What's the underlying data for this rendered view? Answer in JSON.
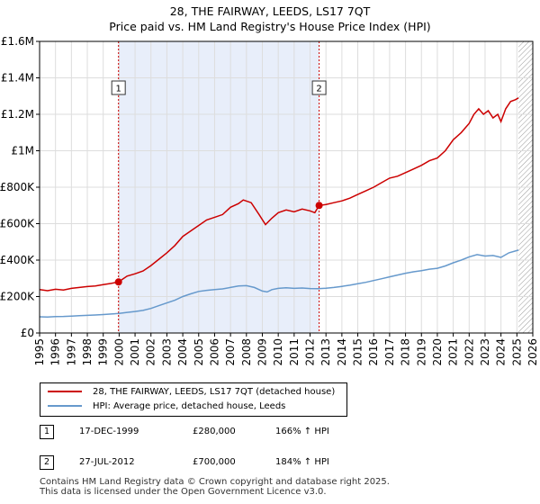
{
  "title_line1": "28, THE FAIRWAY, LEEDS, LS17 7QT",
  "title_line2": "Price paid vs. HM Land Registry's House Price Index (HPI)",
  "colors": {
    "property": "#cc0000",
    "hpi": "#6699cc",
    "sale_band": "#e8eefa",
    "future_hatch": "#999999"
  },
  "chart_data": {
    "type": "line",
    "title": "28, THE FAIRWAY, LEEDS, LS17 7QT — Price paid vs. HM Land Registry's House Price Index (HPI)",
    "xlabel": "",
    "ylabel": "",
    "xlim": [
      1995,
      2026
    ],
    "ylim": [
      0,
      1600000
    ],
    "x_ticks": [
      "1995",
      "1996",
      "1997",
      "1998",
      "1999",
      "2000",
      "2001",
      "2002",
      "2003",
      "2004",
      "2005",
      "2006",
      "2007",
      "2008",
      "2009",
      "2010",
      "2011",
      "2012",
      "2013",
      "2014",
      "2015",
      "2016",
      "2017",
      "2018",
      "2019",
      "2020",
      "2021",
      "2022",
      "2023",
      "2024",
      "2025",
      "2026"
    ],
    "y_ticks": [
      {
        "value": 0,
        "label": "£0"
      },
      {
        "value": 200000,
        "label": "£200K"
      },
      {
        "value": 400000,
        "label": "£400K"
      },
      {
        "value": 600000,
        "label": "£600K"
      },
      {
        "value": 800000,
        "label": "£800K"
      },
      {
        "value": 1000000,
        "label": "£1M"
      },
      {
        "value": 1200000,
        "label": "£1.2M"
      },
      {
        "value": 1400000,
        "label": "£1.4M"
      },
      {
        "value": 1600000,
        "label": "£1.6M"
      }
    ],
    "grid": true,
    "shaded_period": [
      1999.96,
      2012.57
    ],
    "future_from": 2025.1,
    "series": [
      {
        "name": "28, THE FAIRWAY, LEEDS, LS17 7QT (detached house)",
        "x": [
          1995,
          1995.5,
          1996,
          1996.5,
          1997,
          1997.5,
          1998,
          1998.5,
          1999,
          1999.5,
          1999.96,
          2000.5,
          2001,
          2001.5,
          2002,
          2002.5,
          2003,
          2003.5,
          2004,
          2004.5,
          2005,
          2005.5,
          2006,
          2006.5,
          2007,
          2007.5,
          2007.8,
          2008.3,
          2008.8,
          2009.2,
          2009.6,
          2010,
          2010.5,
          2011,
          2011.5,
          2012,
          2012.3,
          2012.57,
          2013,
          2013.5,
          2014,
          2014.5,
          2015,
          2015.5,
          2016,
          2016.5,
          2017,
          2017.5,
          2018,
          2018.5,
          2019,
          2019.5,
          2020,
          2020.5,
          2021,
          2021.5,
          2022,
          2022.3,
          2022.6,
          2022.9,
          2023.2,
          2023.5,
          2023.8,
          2024,
          2024.3,
          2024.6,
          2024.9,
          2025.1
        ],
        "values": [
          238000,
          232000,
          240000,
          236000,
          245000,
          250000,
          255000,
          258000,
          265000,
          272000,
          280000,
          312000,
          325000,
          340000,
          370000,
          405000,
          440000,
          480000,
          530000,
          560000,
          590000,
          620000,
          635000,
          650000,
          690000,
          710000,
          730000,
          715000,
          650000,
          595000,
          630000,
          660000,
          675000,
          665000,
          680000,
          670000,
          660000,
          700000,
          705000,
          715000,
          725000,
          740000,
          760000,
          780000,
          800000,
          825000,
          850000,
          860000,
          880000,
          900000,
          920000,
          945000,
          960000,
          1000000,
          1060000,
          1100000,
          1150000,
          1200000,
          1230000,
          1200000,
          1220000,
          1180000,
          1200000,
          1160000,
          1230000,
          1270000,
          1280000,
          1290000
        ]
      },
      {
        "name": "HPI: Average price, detached house, Leeds",
        "x": [
          1995,
          1995.5,
          1996,
          1996.5,
          1997,
          1997.5,
          1998,
          1998.5,
          1999,
          1999.5,
          2000,
          2000.5,
          2001,
          2001.5,
          2002,
          2002.5,
          2003,
          2003.5,
          2004,
          2004.5,
          2005,
          2005.5,
          2006,
          2006.5,
          2007,
          2007.5,
          2008,
          2008.5,
          2009,
          2009.3,
          2009.6,
          2010,
          2010.5,
          2011,
          2011.5,
          2012,
          2012.5,
          2013,
          2013.5,
          2014,
          2014.5,
          2015,
          2015.5,
          2016,
          2016.5,
          2017,
          2017.5,
          2018,
          2018.5,
          2019,
          2019.5,
          2020,
          2020.5,
          2021,
          2021.5,
          2022,
          2022.5,
          2023,
          2023.5,
          2024,
          2024.5,
          2025.1
        ],
        "values": [
          89000,
          88000,
          90000,
          91000,
          93000,
          95000,
          97000,
          99000,
          101000,
          104000,
          107000,
          113000,
          118000,
          124000,
          135000,
          150000,
          165000,
          180000,
          200000,
          215000,
          228000,
          234000,
          238000,
          242000,
          250000,
          258000,
          260000,
          250000,
          230000,
          225000,
          238000,
          245000,
          248000,
          245000,
          247000,
          244000,
          243000,
          246000,
          250000,
          256000,
          262000,
          270000,
          278000,
          288000,
          298000,
          308000,
          318000,
          328000,
          336000,
          342000,
          350000,
          355000,
          368000,
          385000,
          400000,
          418000,
          430000,
          422000,
          425000,
          415000,
          440000,
          455000
        ]
      }
    ],
    "sales": [
      {
        "label": "1",
        "x": 1999.96,
        "value": 280000,
        "date": "17-DEC-1999",
        "price": "£280,000",
        "hpi": "166% ↑ HPI"
      },
      {
        "label": "2",
        "x": 2012.57,
        "value": 700000,
        "date": "27-JUL-2012",
        "price": "£700,000",
        "hpi": "184% ↑ HPI"
      }
    ]
  },
  "legend": {
    "property": "28, THE FAIRWAY, LEEDS, LS17 7QT (detached house)",
    "hpi": "HPI: Average price, detached house, Leeds"
  },
  "footer": {
    "line1": "Contains HM Land Registry data © Crown copyright and database right 2025.",
    "line2": "This data is licensed under the Open Government Licence v3.0."
  }
}
